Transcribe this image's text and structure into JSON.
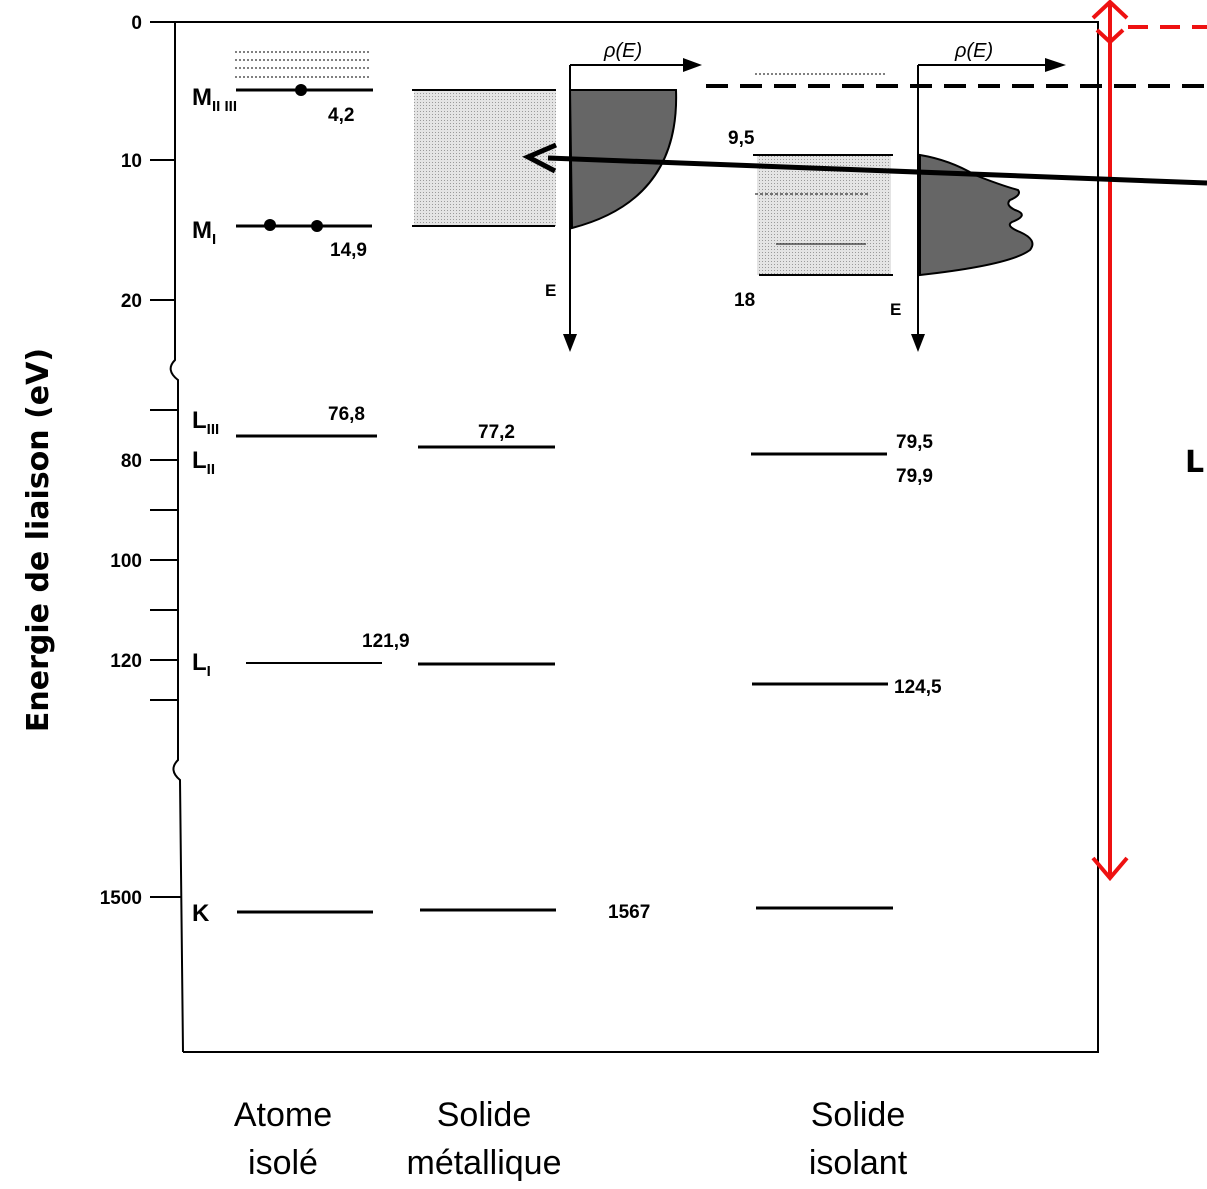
{
  "axis": {
    "title": "Energie de liaison (eV)",
    "ticks": [
      "0",
      "10",
      "20",
      "80",
      "100",
      "120",
      "1500"
    ]
  },
  "columns": {
    "atome": [
      "Atome",
      "isolé"
    ],
    "metal": [
      "Solide",
      "métallique"
    ],
    "isolant": [
      "Solide",
      "isolant"
    ]
  },
  "levels": {
    "m23": {
      "main": "M",
      "sub": "II III"
    },
    "m1": {
      "main": "M",
      "sub": "I"
    },
    "l3": {
      "main": "L",
      "sub": "III"
    },
    "l2": {
      "main": "L",
      "sub": "II"
    },
    "l1": {
      "main": "L",
      "sub": "I"
    },
    "k": {
      "main": "K"
    }
  },
  "values": {
    "atom_m23": "4,2",
    "atom_m1": "14,9",
    "atom_l3": "76,8",
    "atom_l1": "121,9",
    "metal_l": "77,2",
    "metal_k": "1567",
    "ins_top": "9,5",
    "ins_bottom": "18",
    "ins_l3": "79,5",
    "ins_l2": "79,9",
    "ins_l1": "124,5"
  },
  "dos": {
    "rho_label": "ρ(E)",
    "e_label": "E"
  },
  "annotation": {
    "cut_letter": "L"
  },
  "colors": {
    "line": "#000000",
    "band_fill": "#cfcfcf",
    "dos_fill": "#666666",
    "annotation_red": "#ee1111",
    "dashed": "#000000"
  }
}
